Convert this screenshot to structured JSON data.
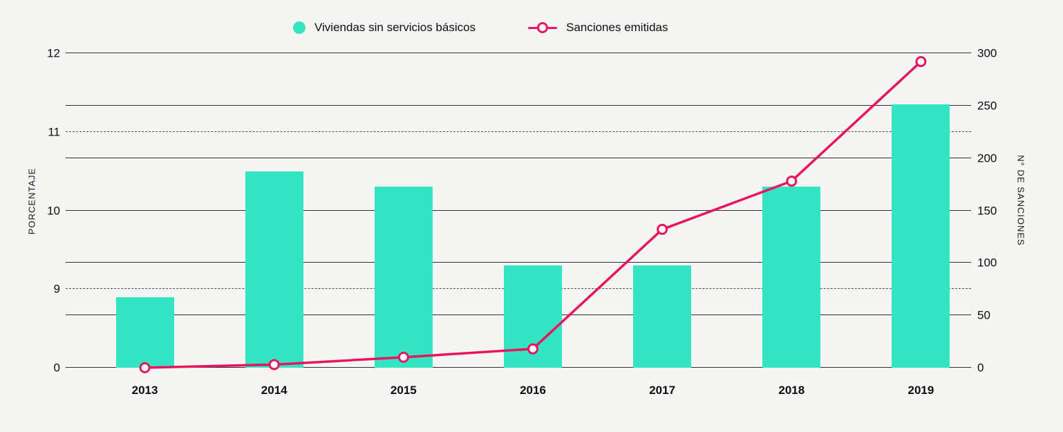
{
  "colors": {
    "background": "#F5F5F4",
    "bar": "#34E5C3",
    "line": "#EB125F",
    "grid_solid": "#2B2B2B",
    "grid_dashed": "#4A4A4A",
    "text": "#0D0D0D"
  },
  "chart_data": {
    "type": "combo",
    "categories": [
      "2013",
      "2014",
      "2015",
      "2016",
      "2017",
      "2018",
      "2019"
    ],
    "series": [
      {
        "name": "Viviendas sin servicios básicos",
        "type": "bar",
        "y_axis": "left",
        "unit": "%",
        "values": [
          8.9,
          10.5,
          10.3,
          9.3,
          9.3,
          10.3,
          11.35
        ]
      },
      {
        "name": "Sanciones emitidas",
        "type": "line",
        "y_axis": "right",
        "values": [
          0,
          3,
          10,
          18,
          132,
          178,
          292
        ]
      }
    ],
    "y_axis_left": {
      "label": "PORCENTAJE",
      "ticks": [
        12,
        11,
        10,
        9,
        0
      ],
      "tick_positions_pct": [
        100,
        75,
        50,
        25,
        0
      ],
      "note": "broken axis: jumps from 0 to 9; ticks 11 and 9 drawn as dashed gridlines"
    },
    "y_axis_right": {
      "label": "N° DE SANCIONES",
      "ticks": [
        300,
        250,
        200,
        150,
        100,
        50,
        0
      ],
      "min": 0,
      "max": 300
    },
    "grid": "horizontal solid lines at right-axis ticks; dashed lines at left ticks 11 and 9",
    "legend_position": "top-center"
  }
}
